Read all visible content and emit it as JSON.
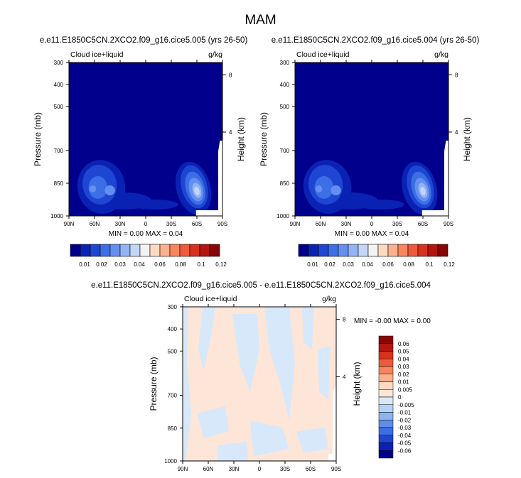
{
  "title": "MAM",
  "colors": {
    "background": "#ffffff",
    "deep_blue": "#00008c",
    "diff_pos": "#fde6d8",
    "diff_neg": "#d6e8fa"
  },
  "chart_data": [
    {
      "type": "heatmap",
      "name": "panel-1",
      "title": "e.e11.E1850C5CN.2XCO2.f09_g16.cice5.005 (yrs 26-50)",
      "left_label": "Cloud ice+liquid",
      "right_label": "g/kg",
      "xlabel": "",
      "ylabel": "Pressure (mb)",
      "ylabel_right": "Height (km)",
      "x_ticks": [
        "90N",
        "60N",
        "30N",
        "0",
        "30S",
        "60S",
        "90S"
      ],
      "y_ticks": [
        "300",
        "400",
        "500",
        "700",
        "850",
        "1000"
      ],
      "y_right_ticks": [
        "8",
        "4"
      ],
      "stats": {
        "min_label": "MIN =",
        "min": "0.00",
        "max_label": "MAX =",
        "max": "0.04"
      },
      "colorbar_levels": [
        "0.01",
        "0.02",
        "0.03",
        "0.04",
        "0.06",
        "0.08",
        "0.1",
        "0.12"
      ],
      "features": [
        {
          "lat": 58,
          "p": 855,
          "value": 0.04
        },
        {
          "lat": 47,
          "p": 900,
          "value": 0.025
        },
        {
          "lat": 58,
          "p": 850,
          "value": 0.02
        },
        {
          "lat": -55,
          "p": 850,
          "value": 0.04
        }
      ]
    },
    {
      "type": "heatmap",
      "name": "panel-2",
      "title": "e.e11.E1850C5CN.2XCO2.f09_g16.cice5.004 (yrs 26-50)",
      "left_label": "Cloud ice+liquid",
      "right_label": "g/kg",
      "xlabel": "",
      "ylabel": "Pressure (mb)",
      "ylabel_right": "Height (km)",
      "x_ticks": [
        "90N",
        "60N",
        "30N",
        "0",
        "30S",
        "60S",
        "90S"
      ],
      "y_ticks": [
        "300",
        "400",
        "500",
        "700",
        "850",
        "1000"
      ],
      "y_right_ticks": [
        "8",
        "4"
      ],
      "stats": {
        "min_label": "MIN =",
        "min": "0.00",
        "max_label": "MAX =",
        "max": "0.04"
      },
      "colorbar_levels": [
        "0.01",
        "0.02",
        "0.03",
        "0.04",
        "0.06",
        "0.08",
        "0.1",
        "0.12"
      ]
    },
    {
      "type": "heatmap",
      "name": "panel-diff",
      "title": "e.e11.E1850C5CN.2XCO2.f09_g16.cice5.005 - e.e11.E1850C5CN.2XCO2.f09_g16.cice5.004",
      "left_label": "Cloud ice+liquid",
      "right_label": "g/kg",
      "xlabel": "",
      "ylabel": "Pressure (mb)",
      "ylabel_right": "Height (km)",
      "x_ticks": [
        "90N",
        "60N",
        "30N",
        "0",
        "30S",
        "60S",
        "90S"
      ],
      "y_ticks": [
        "300",
        "400",
        "500",
        "700",
        "850",
        "1000"
      ],
      "y_right_ticks": [
        "8",
        "4"
      ],
      "stats": {
        "min_label": "MIN =",
        "min": "-0.00",
        "max_label": "MAX =",
        "max": "0.00"
      },
      "colorbar_levels": [
        "0.06",
        "0.05",
        "0.04",
        "0.03",
        "0.02",
        "0.01",
        "0.005",
        "0",
        "-0.005",
        "-0.01",
        "-0.02",
        "-0.03",
        "-0.04",
        "-0.05",
        "-0.06"
      ]
    }
  ]
}
